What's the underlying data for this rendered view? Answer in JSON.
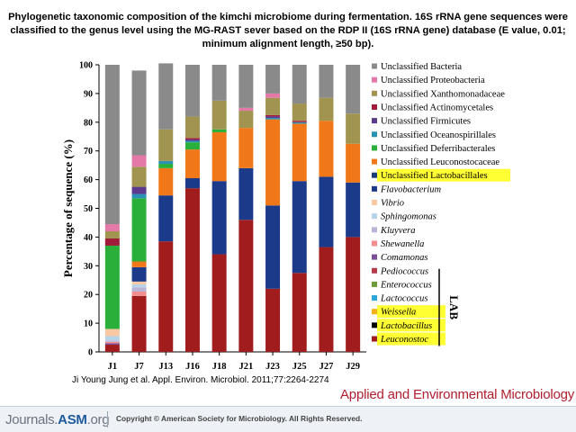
{
  "caption": "Phylogenetic taxonomic composition of the kimchi microbiome during fermentation. 16S rRNA gene sequences were classified to the genus level using the MG-RAST sever based on the RDP II (16S rRNA gene) database (E value, 0.01; minimum alignment length, ≥50 bp).",
  "citation": "Ji Young Jung et al. Appl. Environ. Microbiol. 2011;77:2264-2274",
  "journal": "Applied and Environmental Microbiology",
  "footer": {
    "logo_prefix": "Journals.",
    "logo_asm": "ASM",
    "logo_suffix": ".org",
    "copyright": "Copyright © American Society for Microbiology. All Rights Reserved."
  },
  "lab_label": "LAB",
  "chart_data": {
    "type": "bar",
    "stacked": true,
    "ylabel": "Percentage of sequence (%)",
    "xlabel": "",
    "ylim": [
      0,
      100
    ],
    "yticks": [
      0,
      10,
      20,
      30,
      40,
      50,
      60,
      70,
      80,
      90,
      100
    ],
    "grid": false,
    "legend_position": "right",
    "categories": [
      "J1",
      "J7",
      "J13",
      "J16",
      "J18",
      "J21",
      "J23",
      "J25",
      "J27",
      "J29"
    ],
    "series": [
      {
        "name": "Leuconostoc",
        "color": "#a11d1d",
        "values": [
          2.5,
          19.5,
          38.5,
          57,
          34,
          46,
          22,
          27.5,
          36.5,
          40
        ]
      },
      {
        "name": "Lactobacillus",
        "color": "#000000",
        "values": [
          0,
          0,
          0,
          0,
          0,
          0,
          0,
          0,
          0,
          0
        ]
      },
      {
        "name": "Weissella",
        "color": "#f5b016",
        "values": [
          0,
          0,
          0,
          0,
          0,
          0,
          0,
          0,
          0,
          0
        ]
      },
      {
        "name": "Lactococcus",
        "color": "#2ea6da",
        "values": [
          0,
          0,
          0,
          0,
          0,
          0,
          0,
          0,
          0,
          0
        ]
      },
      {
        "name": "Enterococcus",
        "color": "#6f9a3c",
        "values": [
          0,
          0,
          0,
          0,
          0,
          0,
          0,
          0,
          0,
          0
        ]
      },
      {
        "name": "Pediococcus",
        "color": "#b33c4c",
        "values": [
          0,
          0,
          0,
          0,
          0,
          0,
          0,
          0,
          0,
          0
        ]
      },
      {
        "name": "Comamonas",
        "color": "#7a4f9a",
        "values": [
          0.5,
          0,
          0,
          0,
          0,
          0,
          0,
          0,
          0,
          0
        ]
      },
      {
        "name": "Shewanella",
        "color": "#f28d8d",
        "values": [
          0.5,
          1.5,
          0,
          0,
          0,
          0,
          0,
          0,
          0,
          0
        ]
      },
      {
        "name": "Kluyvera",
        "color": "#b9b4d6",
        "values": [
          0.5,
          1.5,
          0,
          0,
          0,
          0,
          0,
          0,
          0,
          0
        ]
      },
      {
        "name": "Sphingomonas",
        "color": "#b7d3e7",
        "values": [
          1.5,
          1,
          0,
          0,
          0,
          0,
          0,
          0,
          0,
          0
        ]
      },
      {
        "name": "Vibrio",
        "color": "#f9c9a3",
        "values": [
          2.5,
          1,
          0,
          0,
          0,
          0,
          0,
          0,
          0,
          0
        ]
      },
      {
        "name": "Flavobacterium",
        "color": "#1c3a8a",
        "values": [
          0,
          5,
          16,
          3.5,
          25.5,
          18,
          29,
          32,
          24.5,
          19
        ]
      },
      {
        "name": "Unclassified Lactobacillales",
        "color": "#1e3c78",
        "values": [
          0,
          0,
          0,
          0,
          0,
          0,
          0,
          0,
          0,
          0
        ]
      },
      {
        "name": "Unclassified Leuconostocaceae",
        "color": "#f07818",
        "values": [
          0,
          2,
          9.5,
          10,
          17,
          14,
          30,
          20,
          19.5,
          13.5
        ]
      },
      {
        "name": "Unclassified Deferribacterales",
        "color": "#2ab03a",
        "values": [
          29,
          22,
          1.5,
          2.5,
          1,
          0,
          0,
          0,
          0,
          0
        ]
      },
      {
        "name": "Unclassified Oceanospirillales",
        "color": "#2a93b5",
        "values": [
          0,
          1.5,
          1,
          0.5,
          0,
          0,
          0.5,
          0.5,
          0,
          0
        ]
      },
      {
        "name": "Unclassified Firmicutes",
        "color": "#5c3a8e",
        "values": [
          0,
          2.5,
          0,
          0.5,
          0,
          0,
          0.5,
          0,
          0,
          0
        ]
      },
      {
        "name": "Unclassified Actinomycetales",
        "color": "#a01c3a",
        "values": [
          2.5,
          0,
          0,
          0.5,
          0,
          0,
          0.5,
          0.5,
          0,
          0
        ]
      },
      {
        "name": "Unclassified Xanthomonadaceae",
        "color": "#a09450",
        "values": [
          2.5,
          7,
          11,
          7.5,
          10,
          6,
          6,
          6,
          8,
          10.5
        ]
      },
      {
        "name": "Unclassified Proteobacteria",
        "color": "#e479a8",
        "values": [
          2.5,
          4,
          0,
          0,
          0,
          1,
          1.5,
          0,
          0,
          0
        ]
      },
      {
        "name": "Unclassified Bacteria",
        "color": "#8a8a8a",
        "values": [
          55.5,
          29.5,
          23,
          18,
          12.5,
          15,
          10,
          13.5,
          11.5,
          17
        ]
      }
    ],
    "legend_order": [
      "Unclassified Bacteria",
      "Unclassified Proteobacteria",
      "Unclassified Xanthomonadaceae",
      "Unclassified Actinomycetales",
      "Unclassified Firmicutes",
      "Unclassified Oceanospirillales",
      "Unclassified Deferribacterales",
      "Unclassified Leuconostocaceae",
      "Unclassified Lactobacillales",
      "Flavobacterium",
      "Vibrio",
      "Sphingomonas",
      "Kluyvera",
      "Shewanella",
      "Comamonas",
      "Pediococcus",
      "Enterococcus",
      "Lactococcus",
      "Weissella",
      "Lactobacillus",
      "Leuconostoc"
    ],
    "legend_italic": [
      "Flavobacterium",
      "Vibrio",
      "Sphingomonas",
      "Kluyvera",
      "Shewanella",
      "Comamonas",
      "Pediococcus",
      "Enterococcus",
      "Lactococcus",
      "Weissella",
      "Lactobacillus",
      "Leuconostoc"
    ],
    "legend_highlighted": [
      "Unclassified Lactobacillales",
      "Weissella",
      "Lactobacillus",
      "Leuconostoc"
    ],
    "highlight_color": "#ffff33"
  }
}
